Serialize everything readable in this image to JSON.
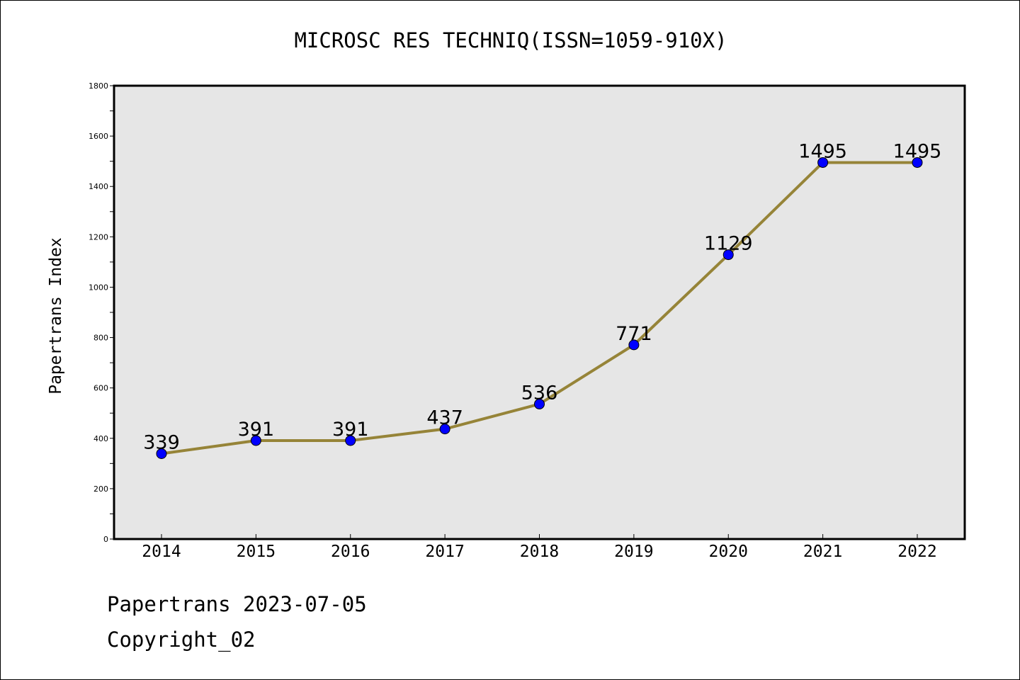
{
  "chart_data": {
    "type": "line",
    "title": "MICROSC RES TECHNIQ(ISSN=1059-910X)",
    "xlabel": "",
    "ylabel": "Papertrans Index",
    "categories": [
      "2014",
      "2015",
      "2016",
      "2017",
      "2018",
      "2019",
      "2020",
      "2021",
      "2022"
    ],
    "series": [
      {
        "values": [
          339,
          391,
          391,
          437,
          536,
          771,
          1129,
          1495,
          1495
        ]
      }
    ],
    "data_labels": [
      "339",
      "391",
      "391",
      "437",
      "536",
      "771",
      "1129",
      "1495",
      "1495"
    ],
    "ylim": [
      0,
      1800
    ],
    "yticks": [
      "0",
      "200",
      "400",
      "600",
      "800",
      "1000",
      "1200",
      "1400",
      "1600",
      "1800"
    ],
    "grid": false,
    "colors": {
      "line": "#968438",
      "marker": "#0000ff",
      "plot_background": "#e6e6e6"
    }
  },
  "footer": {
    "line1": "Papertrans 2023-07-05",
    "line2": "Copyright_02"
  }
}
